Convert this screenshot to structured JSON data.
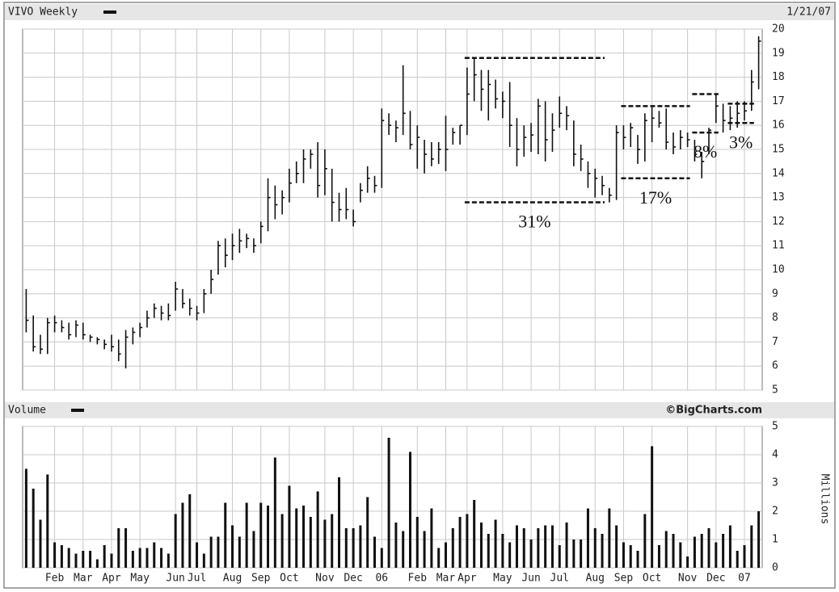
{
  "chart_data": [
    {
      "type": "hlc",
      "title": "VIVO Weekly",
      "date": "1/21/07",
      "color": "#111111",
      "grid": true,
      "ylim": [
        5,
        20
      ],
      "yticks": [
        5,
        6,
        7,
        8,
        9,
        10,
        11,
        12,
        13,
        14,
        15,
        16,
        17,
        18,
        19,
        20
      ],
      "high": [
        9.2,
        8.1,
        7.3,
        8.0,
        8.1,
        7.9,
        7.8,
        7.9,
        7.8,
        7.3,
        7.2,
        7.1,
        7.3,
        7.1,
        7.5,
        7.6,
        7.8,
        8.3,
        8.6,
        8.5,
        8.6,
        9.5,
        9.2,
        8.8,
        8.5,
        9.2,
        10.0,
        11.2,
        11.3,
        11.5,
        11.7,
        11.5,
        11.3,
        12.0,
        13.8,
        13.5,
        13.3,
        14.2,
        14.5,
        15.0,
        15.0,
        15.3,
        15.0,
        14.2,
        13.2,
        13.4,
        12.5,
        13.6,
        14.3,
        13.9,
        16.7,
        16.5,
        16.2,
        18.5,
        16.6,
        16.0,
        15.4,
        15.3,
        15.3,
        16.4,
        15.9,
        16.0,
        18.4,
        18.8,
        18.3,
        18.3,
        17.9,
        17.4,
        17.8,
        16.3,
        16.0,
        16.1,
        17.1,
        17.0,
        16.5,
        17.2,
        16.8,
        16.2,
        15.2,
        14.5,
        14.2,
        13.9,
        13.4,
        16.0,
        16.0,
        16.1,
        15.6,
        16.5,
        16.8,
        16.6,
        16.7,
        15.7,
        15.8,
        15.7,
        15.4,
        14.9,
        15.9,
        17.3,
        16.9,
        16.8,
        17.0,
        17.0,
        18.3,
        19.7
      ],
      "low": [
        7.4,
        6.6,
        6.5,
        6.5,
        7.4,
        7.4,
        7.1,
        7.2,
        7.1,
        7.0,
        6.9,
        6.7,
        6.6,
        6.2,
        5.9,
        6.9,
        7.2,
        7.6,
        8.0,
        7.9,
        7.9,
        8.3,
        8.4,
        8.1,
        7.9,
        8.2,
        9.0,
        9.8,
        10.1,
        10.4,
        10.7,
        10.9,
        10.7,
        11.1,
        11.6,
        12.1,
        12.3,
        12.8,
        13.6,
        13.6,
        14.2,
        13.0,
        13.1,
        12.0,
        12.0,
        12.1,
        11.8,
        12.8,
        13.2,
        13.2,
        13.4,
        15.6,
        15.3,
        15.6,
        15.0,
        14.2,
        14.0,
        14.3,
        14.4,
        14.1,
        15.2,
        15.2,
        15.6,
        17.0,
        16.6,
        16.2,
        16.7,
        16.3,
        15.1,
        14.3,
        14.7,
        14.9,
        14.8,
        14.5,
        14.9,
        15.9,
        15.8,
        14.3,
        14.1,
        13.4,
        13.0,
        13.1,
        12.8,
        12.9,
        15.0,
        15.1,
        14.4,
        14.5,
        15.3,
        15.9,
        15.0,
        14.8,
        15.0,
        15.1,
        14.5,
        13.8,
        14.8,
        16.1,
        15.7,
        15.8,
        15.9,
        16.2,
        16.6,
        17.5
      ],
      "close": [
        7.9,
        6.8,
        6.7,
        7.8,
        7.8,
        7.6,
        7.3,
        7.7,
        7.3,
        7.2,
        7.1,
        6.9,
        6.8,
        6.5,
        7.2,
        7.4,
        7.6,
        8.0,
        8.4,
        8.2,
        8.1,
        9.2,
        8.6,
        8.4,
        8.2,
        9.0,
        9.6,
        11.0,
        10.6,
        11.0,
        11.2,
        11.3,
        11.0,
        11.8,
        13.0,
        12.7,
        13.0,
        13.6,
        14.0,
        14.6,
        14.8,
        13.5,
        14.2,
        12.8,
        12.5,
        12.5,
        12.0,
        13.3,
        13.8,
        13.5,
        16.2,
        16.0,
        15.9,
        16.5,
        15.2,
        15.5,
        14.8,
        14.6,
        15.0,
        15.0,
        15.7,
        16.0,
        17.3,
        18.1,
        17.5,
        17.7,
        17.1,
        17.0,
        16.0,
        15.0,
        15.5,
        15.6,
        16.8,
        15.4,
        15.8,
        16.5,
        16.4,
        14.8,
        14.6,
        14.0,
        13.8,
        13.5,
        13.1,
        15.7,
        15.5,
        15.9,
        15.0,
        16.2,
        16.3,
        16.1,
        15.3,
        15.1,
        15.5,
        15.4,
        14.8,
        14.5,
        15.8,
        16.8,
        16.2,
        16.3,
        16.5,
        16.6,
        17.8,
        19.5
      ],
      "annotations": [
        {
          "text": "31%",
          "high": 18.8,
          "low": 12.8,
          "x_range": [
            62,
            81
          ]
        },
        {
          "text": "17%",
          "high": 16.8,
          "low": 13.8,
          "x_range": [
            84,
            93
          ]
        },
        {
          "text": "8%",
          "high": 17.3,
          "low": 15.7,
          "x_range": [
            94,
            97
          ]
        },
        {
          "text": "3%",
          "high": 16.9,
          "low": 16.1,
          "x_range": [
            99,
            102
          ]
        }
      ]
    },
    {
      "type": "bar",
      "title": "Volume",
      "source": "©BigCharts.com",
      "y_label": "Millions",
      "color": "#111111",
      "grid": true,
      "ylim": [
        0,
        5
      ],
      "yticks": [
        0,
        1,
        2,
        3,
        4,
        5
      ],
      "categories": [
        null,
        null,
        null,
        null,
        "Feb",
        null,
        null,
        null,
        "Mar",
        null,
        null,
        null,
        "Apr",
        null,
        null,
        null,
        "May",
        null,
        null,
        null,
        null,
        "Jun",
        null,
        null,
        "Jul",
        null,
        null,
        null,
        null,
        "Aug",
        null,
        null,
        null,
        "Sep",
        null,
        null,
        null,
        "Oct",
        null,
        null,
        null,
        null,
        "Nov",
        null,
        null,
        null,
        "Dec",
        null,
        null,
        null,
        "06",
        null,
        null,
        null,
        null,
        "Feb",
        null,
        null,
        null,
        "Mar",
        null,
        null,
        "Apr",
        null,
        null,
        null,
        null,
        "May",
        null,
        null,
        null,
        "Jun",
        null,
        null,
        null,
        "Jul",
        null,
        null,
        null,
        null,
        "Aug",
        null,
        null,
        null,
        "Sep",
        null,
        null,
        null,
        "Oct",
        null,
        null,
        null,
        null,
        "Nov",
        null,
        null,
        null,
        "Dec",
        null,
        null,
        null,
        "07",
        null,
        null
      ],
      "values": [
        3.5,
        2.8,
        1.7,
        3.3,
        0.9,
        0.8,
        0.7,
        0.5,
        0.6,
        0.6,
        0.3,
        0.8,
        0.5,
        1.4,
        1.4,
        0.6,
        0.7,
        0.7,
        0.9,
        0.7,
        0.5,
        1.9,
        2.3,
        2.6,
        0.9,
        0.5,
        1.1,
        1.1,
        2.3,
        1.5,
        1.1,
        2.3,
        1.3,
        2.3,
        2.2,
        3.9,
        1.9,
        2.9,
        2.1,
        2.2,
        1.8,
        2.7,
        1.7,
        1.9,
        3.2,
        1.4,
        1.4,
        1.5,
        2.5,
        1.1,
        0.7,
        4.6,
        1.6,
        1.3,
        4.1,
        1.8,
        1.3,
        2.1,
        0.7,
        0.9,
        1.4,
        1.8,
        1.9,
        2.4,
        1.6,
        1.2,
        1.7,
        1.2,
        0.9,
        1.5,
        1.4,
        1.0,
        1.4,
        1.5,
        1.5,
        0.8,
        1.6,
        1.0,
        1.0,
        2.1,
        1.4,
        1.2,
        2.1,
        1.5,
        0.9,
        0.8,
        0.6,
        1.9,
        4.3,
        0.8,
        1.3,
        1.2,
        0.9,
        0.4,
        1.1,
        1.2,
        1.4,
        0.9,
        1.2,
        1.5,
        0.6,
        0.8,
        1.5,
        2.0
      ]
    }
  ]
}
